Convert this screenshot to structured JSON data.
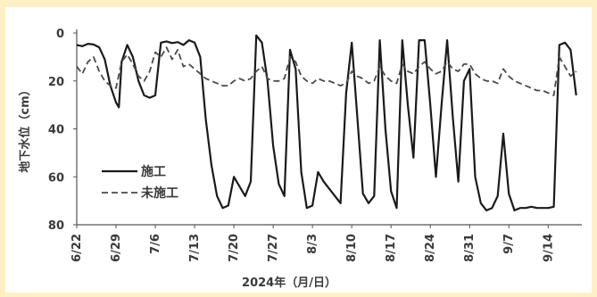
{
  "chart_data": {
    "type": "line",
    "xlabel": "2024年（月/日）",
    "ylabel": "地下水位（cm）",
    "ylim": [
      80,
      0
    ],
    "y_ticks": [
      0,
      20,
      40,
      60,
      80
    ],
    "x_ticks": [
      "6/22",
      "6/29",
      "7/6",
      "7/13",
      "7/20",
      "7/27",
      "8/3",
      "8/10",
      "8/17",
      "8/24",
      "8/31",
      "9/7",
      "9/14"
    ],
    "x_range_days": [
      0,
      90
    ],
    "legend_position": "center-left",
    "series": [
      {
        "name": "施工",
        "style": "solid",
        "color": "#1a1a1a",
        "points": [
          [
            0,
            5
          ],
          [
            1,
            5.5
          ],
          [
            2,
            4.5
          ],
          [
            3,
            4.8
          ],
          [
            4,
            6
          ],
          [
            5,
            11
          ],
          [
            6,
            22
          ],
          [
            7,
            29
          ],
          [
            7.5,
            31
          ],
          [
            8,
            12
          ],
          [
            9,
            5
          ],
          [
            10,
            10
          ],
          [
            11,
            20
          ],
          [
            12,
            26
          ],
          [
            13,
            27
          ],
          [
            14,
            26
          ],
          [
            15,
            4
          ],
          [
            16,
            3.5
          ],
          [
            17,
            4.2
          ],
          [
            18,
            3.8
          ],
          [
            19,
            5
          ],
          [
            20,
            3
          ],
          [
            21,
            4
          ],
          [
            22,
            10
          ],
          [
            23,
            36
          ],
          [
            24,
            55
          ],
          [
            25,
            68
          ],
          [
            26,
            73
          ],
          [
            27,
            72
          ],
          [
            28,
            60
          ],
          [
            29,
            64
          ],
          [
            30,
            68
          ],
          [
            31,
            62
          ],
          [
            32,
            1
          ],
          [
            33,
            4
          ],
          [
            34,
            20
          ],
          [
            35,
            47
          ],
          [
            36,
            63
          ],
          [
            37,
            68
          ],
          [
            38,
            7
          ],
          [
            39,
            15
          ],
          [
            40,
            58
          ],
          [
            41,
            73
          ],
          [
            42,
            72
          ],
          [
            43,
            58
          ],
          [
            44,
            62
          ],
          [
            45,
            65
          ],
          [
            46,
            68
          ],
          [
            47,
            71
          ],
          [
            48,
            25
          ],
          [
            49,
            4
          ],
          [
            50,
            35
          ],
          [
            51,
            67
          ],
          [
            52,
            71
          ],
          [
            53,
            68
          ],
          [
            54,
            3
          ],
          [
            55,
            40
          ],
          [
            56,
            66
          ],
          [
            57,
            73
          ],
          [
            58,
            3
          ],
          [
            59,
            30
          ],
          [
            60,
            52
          ],
          [
            61,
            3
          ],
          [
            62,
            3
          ],
          [
            63,
            30
          ],
          [
            64,
            60
          ],
          [
            65,
            30
          ],
          [
            66,
            3
          ],
          [
            67,
            35
          ],
          [
            68,
            62
          ],
          [
            69,
            20
          ],
          [
            70,
            15
          ],
          [
            71,
            60
          ],
          [
            72,
            71
          ],
          [
            73,
            74
          ],
          [
            74,
            73
          ],
          [
            75,
            68
          ],
          [
            76,
            42
          ],
          [
            77,
            67
          ],
          [
            78,
            74
          ],
          [
            79,
            73
          ],
          [
            80,
            73
          ],
          [
            81,
            72.5
          ],
          [
            82,
            73
          ],
          [
            83,
            73
          ],
          [
            84,
            73
          ],
          [
            85,
            72.5
          ],
          [
            86,
            5
          ],
          [
            87,
            4
          ],
          [
            88,
            7
          ],
          [
            89,
            26
          ]
        ]
      },
      {
        "name": "未施工",
        "style": "dashed",
        "color": "#4a4a4a",
        "points": [
          [
            0,
            14
          ],
          [
            1,
            17
          ],
          [
            2,
            12
          ],
          [
            3,
            10
          ],
          [
            4,
            16
          ],
          [
            5,
            20
          ],
          [
            6,
            22
          ],
          [
            7,
            23
          ],
          [
            8,
            12
          ],
          [
            9,
            9
          ],
          [
            10,
            13
          ],
          [
            11,
            18
          ],
          [
            12,
            20
          ],
          [
            13,
            16
          ],
          [
            14,
            8
          ],
          [
            15,
            10
          ],
          [
            16,
            6
          ],
          [
            17,
            11
          ],
          [
            18,
            7
          ],
          [
            19,
            14
          ],
          [
            20,
            13
          ],
          [
            21,
            15
          ],
          [
            22,
            17
          ],
          [
            23,
            19
          ],
          [
            24,
            20
          ],
          [
            25,
            21
          ],
          [
            26,
            22
          ],
          [
            27,
            22
          ],
          [
            28,
            20
          ],
          [
            29,
            19
          ],
          [
            30,
            20
          ],
          [
            31,
            19
          ],
          [
            32,
            16
          ],
          [
            33,
            14
          ],
          [
            34,
            19
          ],
          [
            35,
            20
          ],
          [
            36,
            20
          ],
          [
            37,
            19
          ],
          [
            38,
            10
          ],
          [
            39,
            12
          ],
          [
            40,
            18
          ],
          [
            41,
            20
          ],
          [
            42,
            21
          ],
          [
            43,
            19
          ],
          [
            44,
            20
          ],
          [
            45,
            20
          ],
          [
            46,
            21
          ],
          [
            47,
            22
          ],
          [
            48,
            21
          ],
          [
            49,
            16
          ],
          [
            50,
            18
          ],
          [
            51,
            19
          ],
          [
            52,
            21
          ],
          [
            53,
            20
          ],
          [
            54,
            14
          ],
          [
            55,
            18
          ],
          [
            56,
            20
          ],
          [
            57,
            21
          ],
          [
            58,
            13
          ],
          [
            59,
            16
          ],
          [
            60,
            17
          ],
          [
            61,
            14
          ],
          [
            62,
            12
          ],
          [
            63,
            15
          ],
          [
            64,
            17
          ],
          [
            65,
            16
          ],
          [
            66,
            12
          ],
          [
            67,
            15
          ],
          [
            68,
            16
          ],
          [
            69,
            13
          ],
          [
            70,
            13
          ],
          [
            71,
            17
          ],
          [
            72,
            19
          ],
          [
            73,
            20
          ],
          [
            74,
            20
          ],
          [
            75,
            21
          ],
          [
            76,
            15
          ],
          [
            77,
            18
          ],
          [
            78,
            20
          ],
          [
            79,
            21
          ],
          [
            80,
            22
          ],
          [
            81,
            23
          ],
          [
            82,
            24
          ],
          [
            83,
            24
          ],
          [
            84,
            25
          ],
          [
            85,
            26
          ],
          [
            86,
            10
          ],
          [
            87,
            14
          ],
          [
            88,
            18
          ],
          [
            89,
            16
          ]
        ]
      }
    ]
  }
}
